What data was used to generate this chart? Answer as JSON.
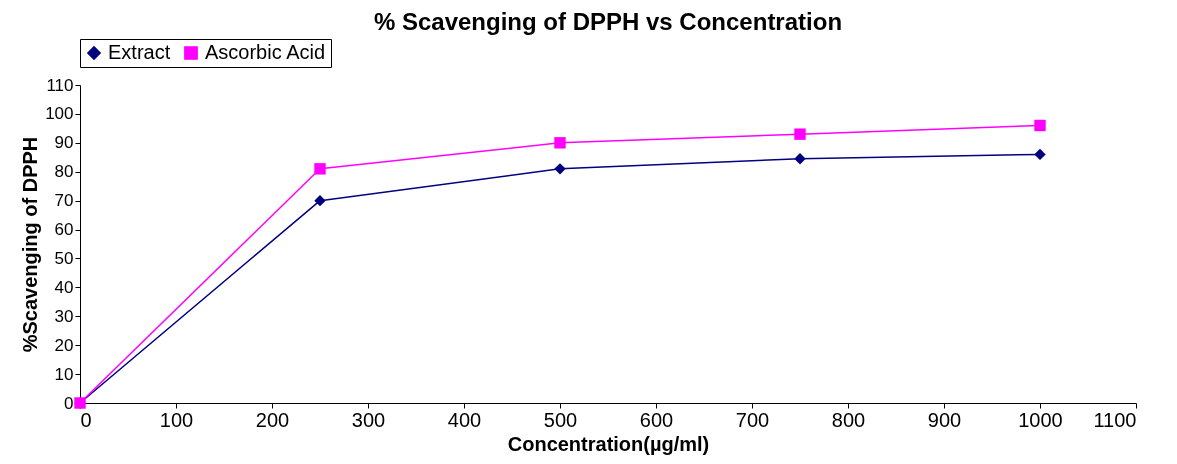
{
  "chart_data": {
    "type": "line",
    "title": "% Scavenging of DPPH vs Concentration",
    "xlabel": "Concentration(µg/ml)",
    "ylabel": "%Scavenging of DPPH",
    "x": [
      0,
      250,
      500,
      750,
      1000
    ],
    "series": [
      {
        "name": "Extract",
        "color": "#000080",
        "marker": "diamond",
        "values": [
          0,
          70,
          81,
          84.5,
          86
        ]
      },
      {
        "name": "Ascorbic Acid",
        "color": "#ff00ff",
        "marker": "square",
        "values": [
          0,
          81,
          90,
          93,
          96
        ]
      }
    ],
    "xlim": [
      0,
      1100
    ],
    "xticks": [
      0,
      100,
      200,
      300,
      400,
      500,
      600,
      700,
      800,
      900,
      1000,
      1100
    ],
    "ylim": [
      0,
      110
    ],
    "yticks": [
      0,
      10,
      20,
      30,
      40,
      50,
      60,
      70,
      80,
      90,
      100,
      110
    ],
    "grid": false,
    "legend": "top",
    "line_style": "solid"
  }
}
